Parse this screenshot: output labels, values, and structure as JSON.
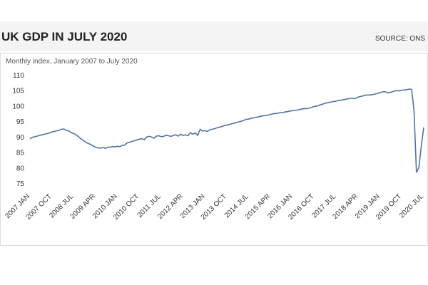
{
  "chart_data": {
    "type": "line",
    "title": "UK GDP IN JULY 2020",
    "source": "SOURCE: ONS",
    "subtitle": "Monthly index, January 2007 to July 2020",
    "color": "#4f73a6",
    "ylim": [
      74,
      111
    ],
    "yticks": [
      75,
      80,
      85,
      90,
      95,
      100,
      105,
      110
    ],
    "categories": [
      "2007 JAN",
      null,
      null,
      null,
      null,
      null,
      null,
      null,
      null,
      "2007 OCT",
      null,
      null,
      null,
      null,
      null,
      null,
      null,
      null,
      "2008 JUL",
      null,
      null,
      null,
      null,
      null,
      null,
      null,
      null,
      "2009 APR",
      null,
      null,
      null,
      null,
      null,
      null,
      null,
      null,
      "2010 JAN",
      null,
      null,
      null,
      null,
      null,
      null,
      null,
      null,
      "2010 OCT",
      null,
      null,
      null,
      null,
      null,
      null,
      null,
      null,
      "2011 JUL",
      null,
      null,
      null,
      null,
      null,
      null,
      null,
      null,
      "2012 APR",
      null,
      null,
      null,
      null,
      null,
      null,
      null,
      null,
      "2013 JAN",
      null,
      null,
      null,
      null,
      null,
      null,
      null,
      null,
      "2013 OCT",
      null,
      null,
      null,
      null,
      null,
      null,
      null,
      null,
      "2014 JUL",
      null,
      null,
      null,
      null,
      null,
      null,
      null,
      null,
      "2015 APR",
      null,
      null,
      null,
      null,
      null,
      null,
      null,
      null,
      "2016 JAN",
      null,
      null,
      null,
      null,
      null,
      null,
      null,
      null,
      "2016 OCT",
      null,
      null,
      null,
      null,
      null,
      null,
      null,
      null,
      "2017 JUL",
      null,
      null,
      null,
      null,
      null,
      null,
      null,
      null,
      "2018 APR",
      null,
      null,
      null,
      null,
      null,
      null,
      null,
      null,
      "2019 JAN",
      null,
      null,
      null,
      null,
      null,
      null,
      null,
      null,
      "2019 OCT",
      null,
      null,
      null,
      null,
      null,
      null,
      null,
      null,
      "2020 JUL"
    ],
    "values": [
      89.3,
      89.8,
      90.0,
      90.2,
      90.4,
      90.6,
      90.8,
      91.0,
      91.2,
      91.5,
      91.7,
      91.9,
      92.1,
      92.4,
      92.5,
      92.0,
      91.9,
      91.3,
      91.0,
      90.6,
      90.0,
      89.3,
      88.8,
      88.2,
      87.8,
      87.5,
      87.0,
      86.6,
      86.4,
      86.3,
      86.5,
      86.2,
      86.6,
      86.6,
      86.8,
      86.7,
      86.9,
      86.8,
      87.2,
      87.3,
      88.0,
      88.2,
      88.5,
      88.7,
      89.0,
      89.2,
      89.4,
      89.0,
      89.9,
      90.1,
      89.9,
      89.5,
      90.2,
      90.3,
      90.0,
      90.1,
      90.5,
      90.3,
      90.1,
      90.4,
      90.6,
      90.2,
      90.8,
      90.4,
      90.6,
      90.3,
      91.3,
      90.8,
      91.2,
      90.4,
      92.4,
      91.8,
      92.0,
      91.7,
      92.2,
      92.4,
      92.6,
      92.9,
      93.1,
      93.3,
      93.6,
      93.8,
      93.9,
      94.2,
      94.4,
      94.6,
      94.8,
      95.0,
      95.3,
      95.6,
      95.7,
      95.9,
      96.1,
      96.3,
      96.4,
      96.6,
      96.8,
      96.8,
      97.0,
      97.2,
      97.4,
      97.5,
      97.6,
      97.8,
      97.8,
      98.0,
      98.1,
      98.3,
      98.4,
      98.5,
      98.6,
      98.8,
      99.0,
      99.1,
      99.1,
      99.3,
      99.5,
      99.8,
      99.9,
      100.2,
      100.4,
      100.7,
      100.9,
      101.1,
      101.2,
      101.4,
      101.5,
      101.7,
      101.8,
      102.0,
      102.1,
      102.3,
      102.5,
      102.3,
      102.4,
      102.8,
      103.0,
      103.2,
      103.4,
      103.5,
      103.5,
      103.6,
      103.8,
      104.0,
      104.2,
      104.5,
      104.6,
      104.2,
      104.3,
      104.5,
      104.8,
      104.9,
      104.8,
      105.0,
      105.1,
      105.2,
      105.4,
      105.3,
      98.5,
      78.5,
      80.0,
      87.0,
      93.0
    ]
  }
}
